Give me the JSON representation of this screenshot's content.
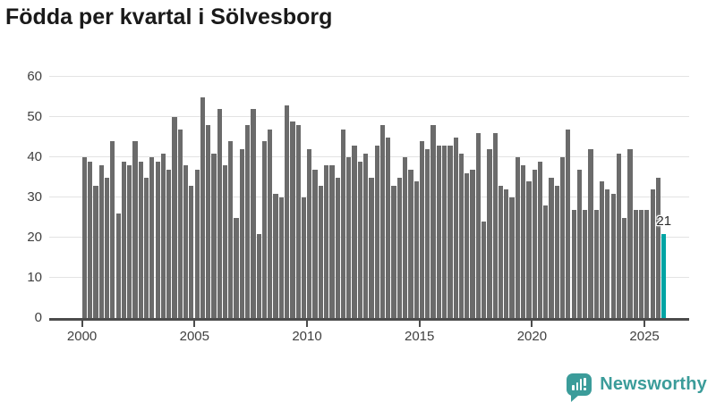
{
  "header": {
    "title": "Födda per kvartal i Sölvesborg"
  },
  "chart_data": {
    "type": "bar",
    "title": "Födda per kvartal i Sölvesborg",
    "xlabel": "",
    "ylabel": "",
    "x_unit": "quarter",
    "values_order": "flattened quarterly values, 4 bars per year, 2000 Q1 through 2025 Q4",
    "start": "2000 Q1",
    "end": "2025 Q4",
    "ylim": [
      0,
      60
    ],
    "yticks": [
      0,
      10,
      20,
      30,
      40,
      50,
      60
    ],
    "xticks": [
      2000,
      2005,
      2010,
      2015,
      2020,
      2025
    ],
    "grid": "horizontal",
    "legend": "none",
    "bar_color": "#6b6b6b",
    "series": [
      {
        "name": "Födda per kvartal",
        "values": [
          40,
          39,
          33,
          38,
          35,
          44,
          26,
          39,
          38,
          44,
          39,
          35,
          40,
          39,
          41,
          37,
          50,
          47,
          38,
          33,
          37,
          55,
          48,
          41,
          52,
          38,
          44,
          25,
          42,
          48,
          52,
          21,
          44,
          47,
          31,
          30,
          53,
          49,
          48,
          30,
          42,
          37,
          33,
          38,
          38,
          35,
          47,
          40,
          43,
          39,
          41,
          35,
          43,
          48,
          45,
          33,
          35,
          40,
          37,
          34,
          44,
          42,
          48,
          43,
          43,
          43,
          45,
          41,
          36,
          37,
          46,
          24,
          42,
          46,
          33,
          32,
          30,
          40,
          38,
          34,
          37,
          39,
          28,
          35,
          33,
          40,
          47,
          27,
          37,
          27,
          42,
          27,
          34,
          32,
          31,
          41,
          25,
          42,
          27,
          27,
          27,
          32,
          35,
          21
        ]
      }
    ],
    "highlight": {
      "position": "last-bar",
      "quarter": "2025 Q4",
      "value": 21,
      "label": "21",
      "color": "#00a4a4"
    }
  },
  "footer": {
    "brand": "Newsworthy",
    "brand_color": "#3b9c9a",
    "logo_icon": "bar-chart-speech-bubble"
  }
}
